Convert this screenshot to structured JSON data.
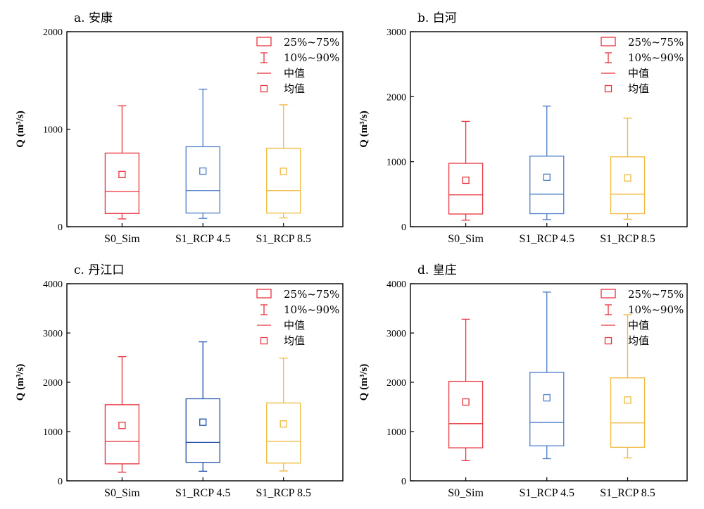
{
  "chart_data": [
    {
      "type": "box",
      "title": "a. 安康",
      "ylabel": "Q (m³/s)",
      "ylim": [
        0,
        2000
      ],
      "yticks": [
        0,
        1000,
        2000
      ],
      "categories": [
        "S0_Sim",
        "S1_RCP 4.5",
        "S1_RCP 8.5"
      ],
      "colors": [
        "#e8323c",
        "#4a7cc9",
        "#f0b93a"
      ],
      "boxes": [
        {
          "p10": 80,
          "q1": 135,
          "median": 360,
          "q3": 755,
          "p90": 1240,
          "mean": 535
        },
        {
          "p10": 85,
          "q1": 140,
          "median": 370,
          "q3": 820,
          "p90": 1410,
          "mean": 570
        },
        {
          "p10": 90,
          "q1": 140,
          "median": 370,
          "q3": 805,
          "p90": 1250,
          "mean": 568
        }
      ],
      "legend": {
        "position": "top-right",
        "items": [
          "25%~75%",
          "10%~90%",
          "中值",
          "均值"
        ]
      }
    },
    {
      "type": "box",
      "title": "b. 白河",
      "ylabel": "Q (m³/s)",
      "ylim": [
        0,
        3000
      ],
      "yticks": [
        0,
        1000,
        2000,
        3000
      ],
      "categories": [
        "S0_Sim",
        "S1_RCP 4.5",
        "S1_RCP 8.5"
      ],
      "colors": [
        "#e8323c",
        "#4a7cc9",
        "#f0b93a"
      ],
      "boxes": [
        {
          "p10": 100,
          "q1": 195,
          "median": 490,
          "q3": 975,
          "p90": 1620,
          "mean": 715
        },
        {
          "p10": 110,
          "q1": 200,
          "median": 500,
          "q3": 1085,
          "p90": 1855,
          "mean": 760
        },
        {
          "p10": 115,
          "q1": 200,
          "median": 500,
          "q3": 1075,
          "p90": 1670,
          "mean": 750
        }
      ],
      "legend": {
        "position": "top-right",
        "items": [
          "25%~75%",
          "10%~90%",
          "中值",
          "均值"
        ]
      }
    },
    {
      "type": "box",
      "title": "c. 丹江口",
      "ylabel": "Q (m³/s)",
      "ylim": [
        0,
        4000
      ],
      "yticks": [
        0,
        1000,
        2000,
        3000,
        4000
      ],
      "categories": [
        "S0_Sim",
        "S1_RCP 4.5",
        "S1_RCP 8.5"
      ],
      "colors": [
        "#e8323c",
        "#1f4faa",
        "#f0b93a"
      ],
      "boxes": [
        {
          "p10": 175,
          "q1": 345,
          "median": 800,
          "q3": 1545,
          "p90": 2520,
          "mean": 1125
        },
        {
          "p10": 195,
          "q1": 375,
          "median": 780,
          "q3": 1665,
          "p90": 2820,
          "mean": 1190
        },
        {
          "p10": 200,
          "q1": 360,
          "median": 800,
          "q3": 1580,
          "p90": 2490,
          "mean": 1155
        }
      ],
      "legend": {
        "position": "top-right",
        "items": [
          "25%~75%",
          "10%~90%",
          "中值",
          "均值"
        ]
      }
    },
    {
      "type": "box",
      "title": "d. 皇庄",
      "ylabel": "Q (m³/s)",
      "ylim": [
        0,
        4000
      ],
      "yticks": [
        0,
        1000,
        2000,
        3000,
        4000
      ],
      "categories": [
        "S0_Sim",
        "S1_RCP 4.5",
        "S1_RCP 8.5"
      ],
      "colors": [
        "#e8323c",
        "#4a7cc9",
        "#f0b93a"
      ],
      "boxes": [
        {
          "p10": 410,
          "q1": 670,
          "median": 1160,
          "q3": 2020,
          "p90": 3280,
          "mean": 1600
        },
        {
          "p10": 450,
          "q1": 710,
          "median": 1185,
          "q3": 2200,
          "p90": 3830,
          "mean": 1685
        },
        {
          "p10": 465,
          "q1": 680,
          "median": 1175,
          "q3": 2090,
          "p90": 3370,
          "mean": 1640
        }
      ],
      "legend": {
        "position": "top-right",
        "items": [
          "25%~75%",
          "10%~90%",
          "中值",
          "均值"
        ]
      }
    }
  ]
}
